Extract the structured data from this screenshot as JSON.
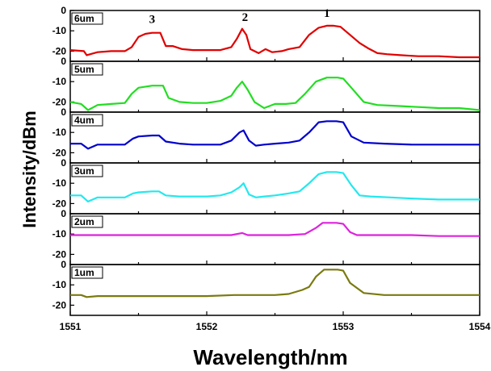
{
  "chart_data": {
    "type": "line",
    "title": "",
    "xlabel": "Wavelength/nm",
    "ylabel": "Intensity/dBm",
    "xlim": [
      1551,
      1554
    ],
    "x_ticks": [
      "1551",
      "1552",
      "1553",
      "1554"
    ],
    "panel_ylim": [
      -25,
      0
    ],
    "panel_y_ticks": [
      "0",
      "-10",
      "-20"
    ],
    "grid": false,
    "panels": [
      {
        "name": "6um",
        "color": "#e00000",
        "peak_labels": [
          {
            "text": "3",
            "x": 1551.6,
            "y": -7
          },
          {
            "text": "2",
            "x": 1552.28,
            "y": -6
          },
          {
            "text": "1",
            "x": 1552.88,
            "y": -4
          }
        ],
        "points": [
          [
            1551.0,
            -19.5
          ],
          [
            1551.1,
            -20
          ],
          [
            1551.12,
            -22
          ],
          [
            1551.2,
            -20.5
          ],
          [
            1551.3,
            -20
          ],
          [
            1551.4,
            -20
          ],
          [
            1551.45,
            -18
          ],
          [
            1551.5,
            -13
          ],
          [
            1551.55,
            -11.5
          ],
          [
            1551.6,
            -11
          ],
          [
            1551.66,
            -11
          ],
          [
            1551.7,
            -17.5
          ],
          [
            1551.75,
            -17.5
          ],
          [
            1551.82,
            -19
          ],
          [
            1551.9,
            -19.5
          ],
          [
            1552.0,
            -19.5
          ],
          [
            1552.1,
            -19.5
          ],
          [
            1552.18,
            -18
          ],
          [
            1552.22,
            -14
          ],
          [
            1552.26,
            -9
          ],
          [
            1552.29,
            -12
          ],
          [
            1552.32,
            -19
          ],
          [
            1552.38,
            -21
          ],
          [
            1552.43,
            -19
          ],
          [
            1552.48,
            -20.5
          ],
          [
            1552.55,
            -20
          ],
          [
            1552.6,
            -19
          ],
          [
            1552.68,
            -18
          ],
          [
            1552.75,
            -12
          ],
          [
            1552.82,
            -8.5
          ],
          [
            1552.88,
            -7.5
          ],
          [
            1552.93,
            -7.5
          ],
          [
            1552.98,
            -8
          ],
          [
            1553.05,
            -12
          ],
          [
            1553.12,
            -16
          ],
          [
            1553.18,
            -18.5
          ],
          [
            1553.25,
            -21
          ],
          [
            1553.32,
            -21.5
          ],
          [
            1553.42,
            -22
          ],
          [
            1553.55,
            -22.5
          ],
          [
            1553.7,
            -22.5
          ],
          [
            1553.85,
            -23
          ],
          [
            1554.0,
            -23
          ]
        ]
      },
      {
        "name": "5um",
        "color": "#22dd22",
        "peak_labels": [],
        "points": [
          [
            1551.0,
            -20
          ],
          [
            1551.08,
            -21
          ],
          [
            1551.13,
            -24
          ],
          [
            1551.2,
            -21.5
          ],
          [
            1551.3,
            -21
          ],
          [
            1551.4,
            -20.5
          ],
          [
            1551.45,
            -16
          ],
          [
            1551.5,
            -13
          ],
          [
            1551.6,
            -12
          ],
          [
            1551.68,
            -12
          ],
          [
            1551.72,
            -18
          ],
          [
            1551.8,
            -20
          ],
          [
            1551.9,
            -20.5
          ],
          [
            1552.0,
            -20.5
          ],
          [
            1552.1,
            -19.5
          ],
          [
            1552.18,
            -17
          ],
          [
            1552.22,
            -13
          ],
          [
            1552.26,
            -10
          ],
          [
            1552.3,
            -14
          ],
          [
            1552.35,
            -20
          ],
          [
            1552.42,
            -23
          ],
          [
            1552.5,
            -21
          ],
          [
            1552.58,
            -21
          ],
          [
            1552.65,
            -20.5
          ],
          [
            1552.72,
            -16
          ],
          [
            1552.8,
            -10
          ],
          [
            1552.88,
            -8
          ],
          [
            1552.96,
            -8
          ],
          [
            1553.0,
            -8.5
          ],
          [
            1553.06,
            -13
          ],
          [
            1553.15,
            -20
          ],
          [
            1553.25,
            -21.5
          ],
          [
            1553.4,
            -22
          ],
          [
            1553.55,
            -22.5
          ],
          [
            1553.7,
            -23
          ],
          [
            1553.85,
            -23
          ],
          [
            1554.0,
            -24
          ]
        ]
      },
      {
        "name": "4um",
        "color": "#0000cc",
        "peak_labels": [],
        "points": [
          [
            1551.0,
            -15.5
          ],
          [
            1551.08,
            -15.5
          ],
          [
            1551.13,
            -18
          ],
          [
            1551.2,
            -16
          ],
          [
            1551.3,
            -16
          ],
          [
            1551.4,
            -16
          ],
          [
            1551.46,
            -13
          ],
          [
            1551.5,
            -12
          ],
          [
            1551.6,
            -11.5
          ],
          [
            1551.65,
            -11.5
          ],
          [
            1551.7,
            -14.5
          ],
          [
            1551.8,
            -15.5
          ],
          [
            1551.9,
            -16
          ],
          [
            1552.0,
            -16
          ],
          [
            1552.1,
            -16
          ],
          [
            1552.18,
            -14
          ],
          [
            1552.24,
            -10
          ],
          [
            1552.27,
            -9
          ],
          [
            1552.31,
            -14
          ],
          [
            1552.36,
            -16.5
          ],
          [
            1552.42,
            -16
          ],
          [
            1552.5,
            -15.5
          ],
          [
            1552.6,
            -15
          ],
          [
            1552.68,
            -14
          ],
          [
            1552.75,
            -10
          ],
          [
            1552.82,
            -5
          ],
          [
            1552.88,
            -4.5
          ],
          [
            1552.95,
            -4.5
          ],
          [
            1553.0,
            -5
          ],
          [
            1553.06,
            -12
          ],
          [
            1553.15,
            -15
          ],
          [
            1553.3,
            -15.5
          ],
          [
            1553.5,
            -16
          ],
          [
            1553.7,
            -16
          ],
          [
            1554.0,
            -16
          ]
        ]
      },
      {
        "name": "3um",
        "color": "#22e8ee",
        "peak_labels": [],
        "points": [
          [
            1551.0,
            -16
          ],
          [
            1551.08,
            -16
          ],
          [
            1551.13,
            -19
          ],
          [
            1551.2,
            -17
          ],
          [
            1551.3,
            -17
          ],
          [
            1551.4,
            -17
          ],
          [
            1551.46,
            -15
          ],
          [
            1551.5,
            -14.5
          ],
          [
            1551.6,
            -14
          ],
          [
            1551.65,
            -14
          ],
          [
            1551.7,
            -16
          ],
          [
            1551.8,
            -16.5
          ],
          [
            1551.9,
            -16.5
          ],
          [
            1552.0,
            -16.5
          ],
          [
            1552.1,
            -16
          ],
          [
            1552.18,
            -14.5
          ],
          [
            1552.24,
            -12
          ],
          [
            1552.27,
            -10
          ],
          [
            1552.31,
            -15.5
          ],
          [
            1552.36,
            -17
          ],
          [
            1552.42,
            -16.5
          ],
          [
            1552.5,
            -16
          ],
          [
            1552.6,
            -15
          ],
          [
            1552.68,
            -14
          ],
          [
            1552.75,
            -10
          ],
          [
            1552.82,
            -5.5
          ],
          [
            1552.88,
            -4.5
          ],
          [
            1552.95,
            -4.5
          ],
          [
            1553.0,
            -5
          ],
          [
            1553.06,
            -11
          ],
          [
            1553.12,
            -16
          ],
          [
            1553.2,
            -16.5
          ],
          [
            1553.35,
            -17
          ],
          [
            1553.5,
            -17.5
          ],
          [
            1553.7,
            -18
          ],
          [
            1554.0,
            -18
          ]
        ]
      },
      {
        "name": "2um",
        "color": "#dd22dd",
        "peak_labels": [],
        "points": [
          [
            1551.0,
            -10.5
          ],
          [
            1551.2,
            -10.5
          ],
          [
            1551.4,
            -10.5
          ],
          [
            1551.6,
            -10.5
          ],
          [
            1551.8,
            -10.5
          ],
          [
            1552.0,
            -10.5
          ],
          [
            1552.18,
            -10.5
          ],
          [
            1552.26,
            -9.5
          ],
          [
            1552.3,
            -10.5
          ],
          [
            1552.45,
            -10.5
          ],
          [
            1552.6,
            -10.5
          ],
          [
            1552.72,
            -10
          ],
          [
            1552.8,
            -7
          ],
          [
            1552.85,
            -4.5
          ],
          [
            1552.95,
            -4.5
          ],
          [
            1553.0,
            -5
          ],
          [
            1553.05,
            -9
          ],
          [
            1553.1,
            -10.5
          ],
          [
            1553.3,
            -10.5
          ],
          [
            1553.5,
            -10.5
          ],
          [
            1553.7,
            -11
          ],
          [
            1554.0,
            -11
          ]
        ]
      },
      {
        "name": "1um",
        "color": "#7a7a10",
        "peak_labels": [],
        "points": [
          [
            1551.0,
            -15
          ],
          [
            1551.08,
            -15
          ],
          [
            1551.12,
            -16
          ],
          [
            1551.2,
            -15.5
          ],
          [
            1551.4,
            -15.5
          ],
          [
            1551.6,
            -15.5
          ],
          [
            1551.8,
            -15.5
          ],
          [
            1552.0,
            -15.5
          ],
          [
            1552.2,
            -15
          ],
          [
            1552.3,
            -15
          ],
          [
            1552.4,
            -15
          ],
          [
            1552.5,
            -15
          ],
          [
            1552.6,
            -14.5
          ],
          [
            1552.7,
            -12.5
          ],
          [
            1552.75,
            -11
          ],
          [
            1552.8,
            -6
          ],
          [
            1552.86,
            -2.5
          ],
          [
            1552.96,
            -2.5
          ],
          [
            1553.0,
            -3
          ],
          [
            1553.05,
            -9
          ],
          [
            1553.1,
            -11.5
          ],
          [
            1553.15,
            -14
          ],
          [
            1553.3,
            -15
          ],
          [
            1553.5,
            -15
          ],
          [
            1553.7,
            -15
          ],
          [
            1554.0,
            -15
          ]
        ]
      }
    ]
  }
}
